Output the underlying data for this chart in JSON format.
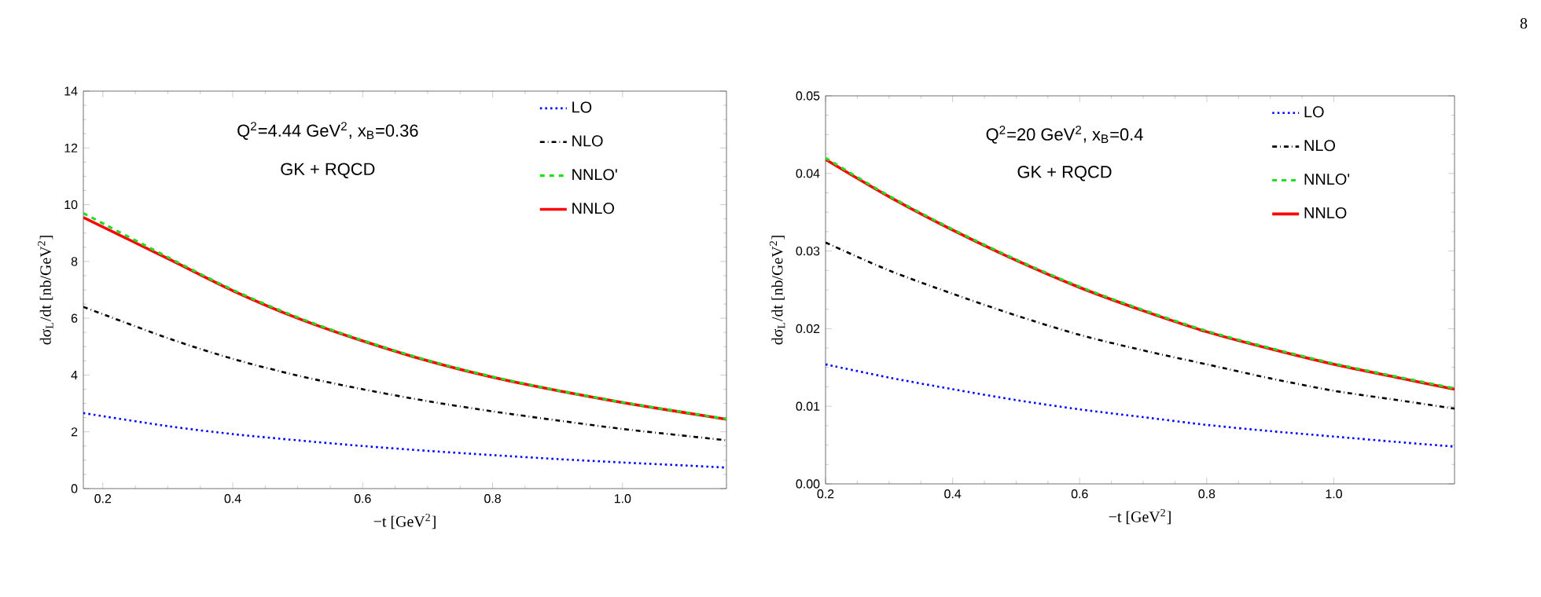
{
  "chart_data": [
    {
      "type": "line",
      "xlabel": "−t [GeV$^{2}$]",
      "ylabel": "dσ$_{L}$/dt [nb/GeV$^{2}$]",
      "annotations": [
        "Q$^{2}$=4.44 GeV$^{2}$, x$_{B}$=0.36",
        "GK + RQCD"
      ],
      "x": [
        0.17,
        0.3,
        0.4,
        0.5,
        0.6,
        0.7,
        0.8,
        0.9,
        1.0,
        1.1,
        1.16
      ],
      "xlim": [
        0.17,
        1.16
      ],
      "ylim": [
        0,
        14
      ],
      "xticks": [
        0.2,
        0.4,
        0.6,
        0.8,
        {
          "value": 1.0,
          "label": "1.0"
        }
      ],
      "yticks": [
        0,
        2,
        4,
        6,
        8,
        10,
        12,
        14
      ],
      "legend": "top right",
      "series": [
        {
          "name": "LO",
          "color": "#0000ff",
          "line_style": "dotted",
          "values": [
            2.66,
            2.2,
            1.92,
            1.7,
            1.5,
            1.33,
            1.18,
            1.04,
            0.92,
            0.81,
            0.74
          ]
        },
        {
          "name": "NLO",
          "color": "#000000",
          "line_style": "dashdot",
          "values": [
            6.4,
            5.3,
            4.57,
            3.98,
            3.5,
            3.08,
            2.72,
            2.4,
            2.1,
            1.85,
            1.7
          ]
        },
        {
          "name": "NNLO'",
          "color": "#22dd22",
          "line_style": "dashed",
          "values": [
            9.7,
            8.15,
            7.0,
            6.03,
            5.22,
            4.52,
            3.94,
            3.46,
            3.04,
            2.67,
            2.45
          ]
        },
        {
          "name": "NNLO",
          "color": "#ff0000",
          "line_style": "solid",
          "values": [
            9.55,
            8.1,
            6.97,
            6.0,
            5.2,
            4.5,
            3.92,
            3.45,
            3.03,
            2.66,
            2.44
          ]
        }
      ]
    },
    {
      "type": "line",
      "xlabel": "−t [GeV$^{2}$]",
      "ylabel": "dσ$_{L}$/dt [nb/GeV$^{2}$]",
      "annotations": [
        "Q$^{2}$=20 GeV$^{2}$, x$_{B}$=0.4",
        "GK + RQCD",
        "8"
      ],
      "x": [
        0.2,
        0.3,
        0.4,
        0.5,
        0.6,
        0.7,
        0.8,
        0.9,
        1.0,
        1.1,
        1.19
      ],
      "xlim": [
        0.2,
        1.19
      ],
      "ylim": [
        0,
        0.05
      ],
      "xticks": [
        0.2,
        0.4,
        0.6,
        0.8,
        {
          "value": 1.0,
          "label": "1.0"
        }
      ],
      "yticks": [
        {
          "value": 0,
          "label": "0.00"
        },
        0.01,
        0.02,
        0.03,
        0.04,
        0.05
      ],
      "legend": "top right",
      "series": [
        {
          "name": "LO",
          "color": "#0000ff",
          "line_style": "dotted",
          "values": [
            0.0154,
            0.0137,
            0.0122,
            0.0108,
            0.0096,
            0.0086,
            0.0076,
            0.0068,
            0.0061,
            0.0054,
            0.0048
          ]
        },
        {
          "name": "NLO",
          "color": "#000000",
          "line_style": "dashdot",
          "values": [
            0.0311,
            0.0275,
            0.0245,
            0.0217,
            0.0192,
            0.0172,
            0.0154,
            0.0136,
            0.012,
            0.0108,
            0.0097
          ]
        },
        {
          "name": "NNLO'",
          "color": "#22dd22",
          "line_style": "dashed",
          "values": [
            0.042,
            0.0371,
            0.0328,
            0.0289,
            0.0254,
            0.0224,
            0.0197,
            0.0175,
            0.0155,
            0.0138,
            0.0123
          ]
        },
        {
          "name": "NNLO",
          "color": "#ff0000",
          "line_style": "solid",
          "values": [
            0.0418,
            0.037,
            0.0327,
            0.0288,
            0.0253,
            0.0223,
            0.0196,
            0.0174,
            0.0154,
            0.0137,
            0.0122
          ]
        }
      ]
    }
  ]
}
